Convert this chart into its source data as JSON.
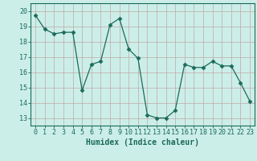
{
  "x": [
    0,
    1,
    2,
    3,
    4,
    5,
    6,
    7,
    8,
    9,
    10,
    11,
    12,
    13,
    14,
    15,
    16,
    17,
    18,
    19,
    20,
    21,
    22,
    23
  ],
  "y": [
    19.7,
    18.8,
    18.5,
    18.6,
    18.6,
    14.8,
    16.5,
    16.7,
    19.1,
    19.5,
    17.5,
    16.9,
    13.2,
    13.0,
    13.0,
    13.5,
    16.5,
    16.3,
    16.3,
    16.7,
    16.4,
    16.4,
    15.3,
    14.1
  ],
  "line_color": "#1a6b5a",
  "marker": "D",
  "marker_size": 2.5,
  "bg_color": "#cceee8",
  "grid_color": "#c0a8a8",
  "xlabel": "Humidex (Indice chaleur)",
  "ylim": [
    12.5,
    20.5
  ],
  "xlim": [
    -0.5,
    23.5
  ],
  "yticks": [
    13,
    14,
    15,
    16,
    17,
    18,
    19,
    20
  ],
  "xticks": [
    0,
    1,
    2,
    3,
    4,
    5,
    6,
    7,
    8,
    9,
    10,
    11,
    12,
    13,
    14,
    15,
    16,
    17,
    18,
    19,
    20,
    21,
    22,
    23
  ],
  "tick_color": "#1a6b5a",
  "label_fontsize": 7,
  "tick_fontsize": 6
}
